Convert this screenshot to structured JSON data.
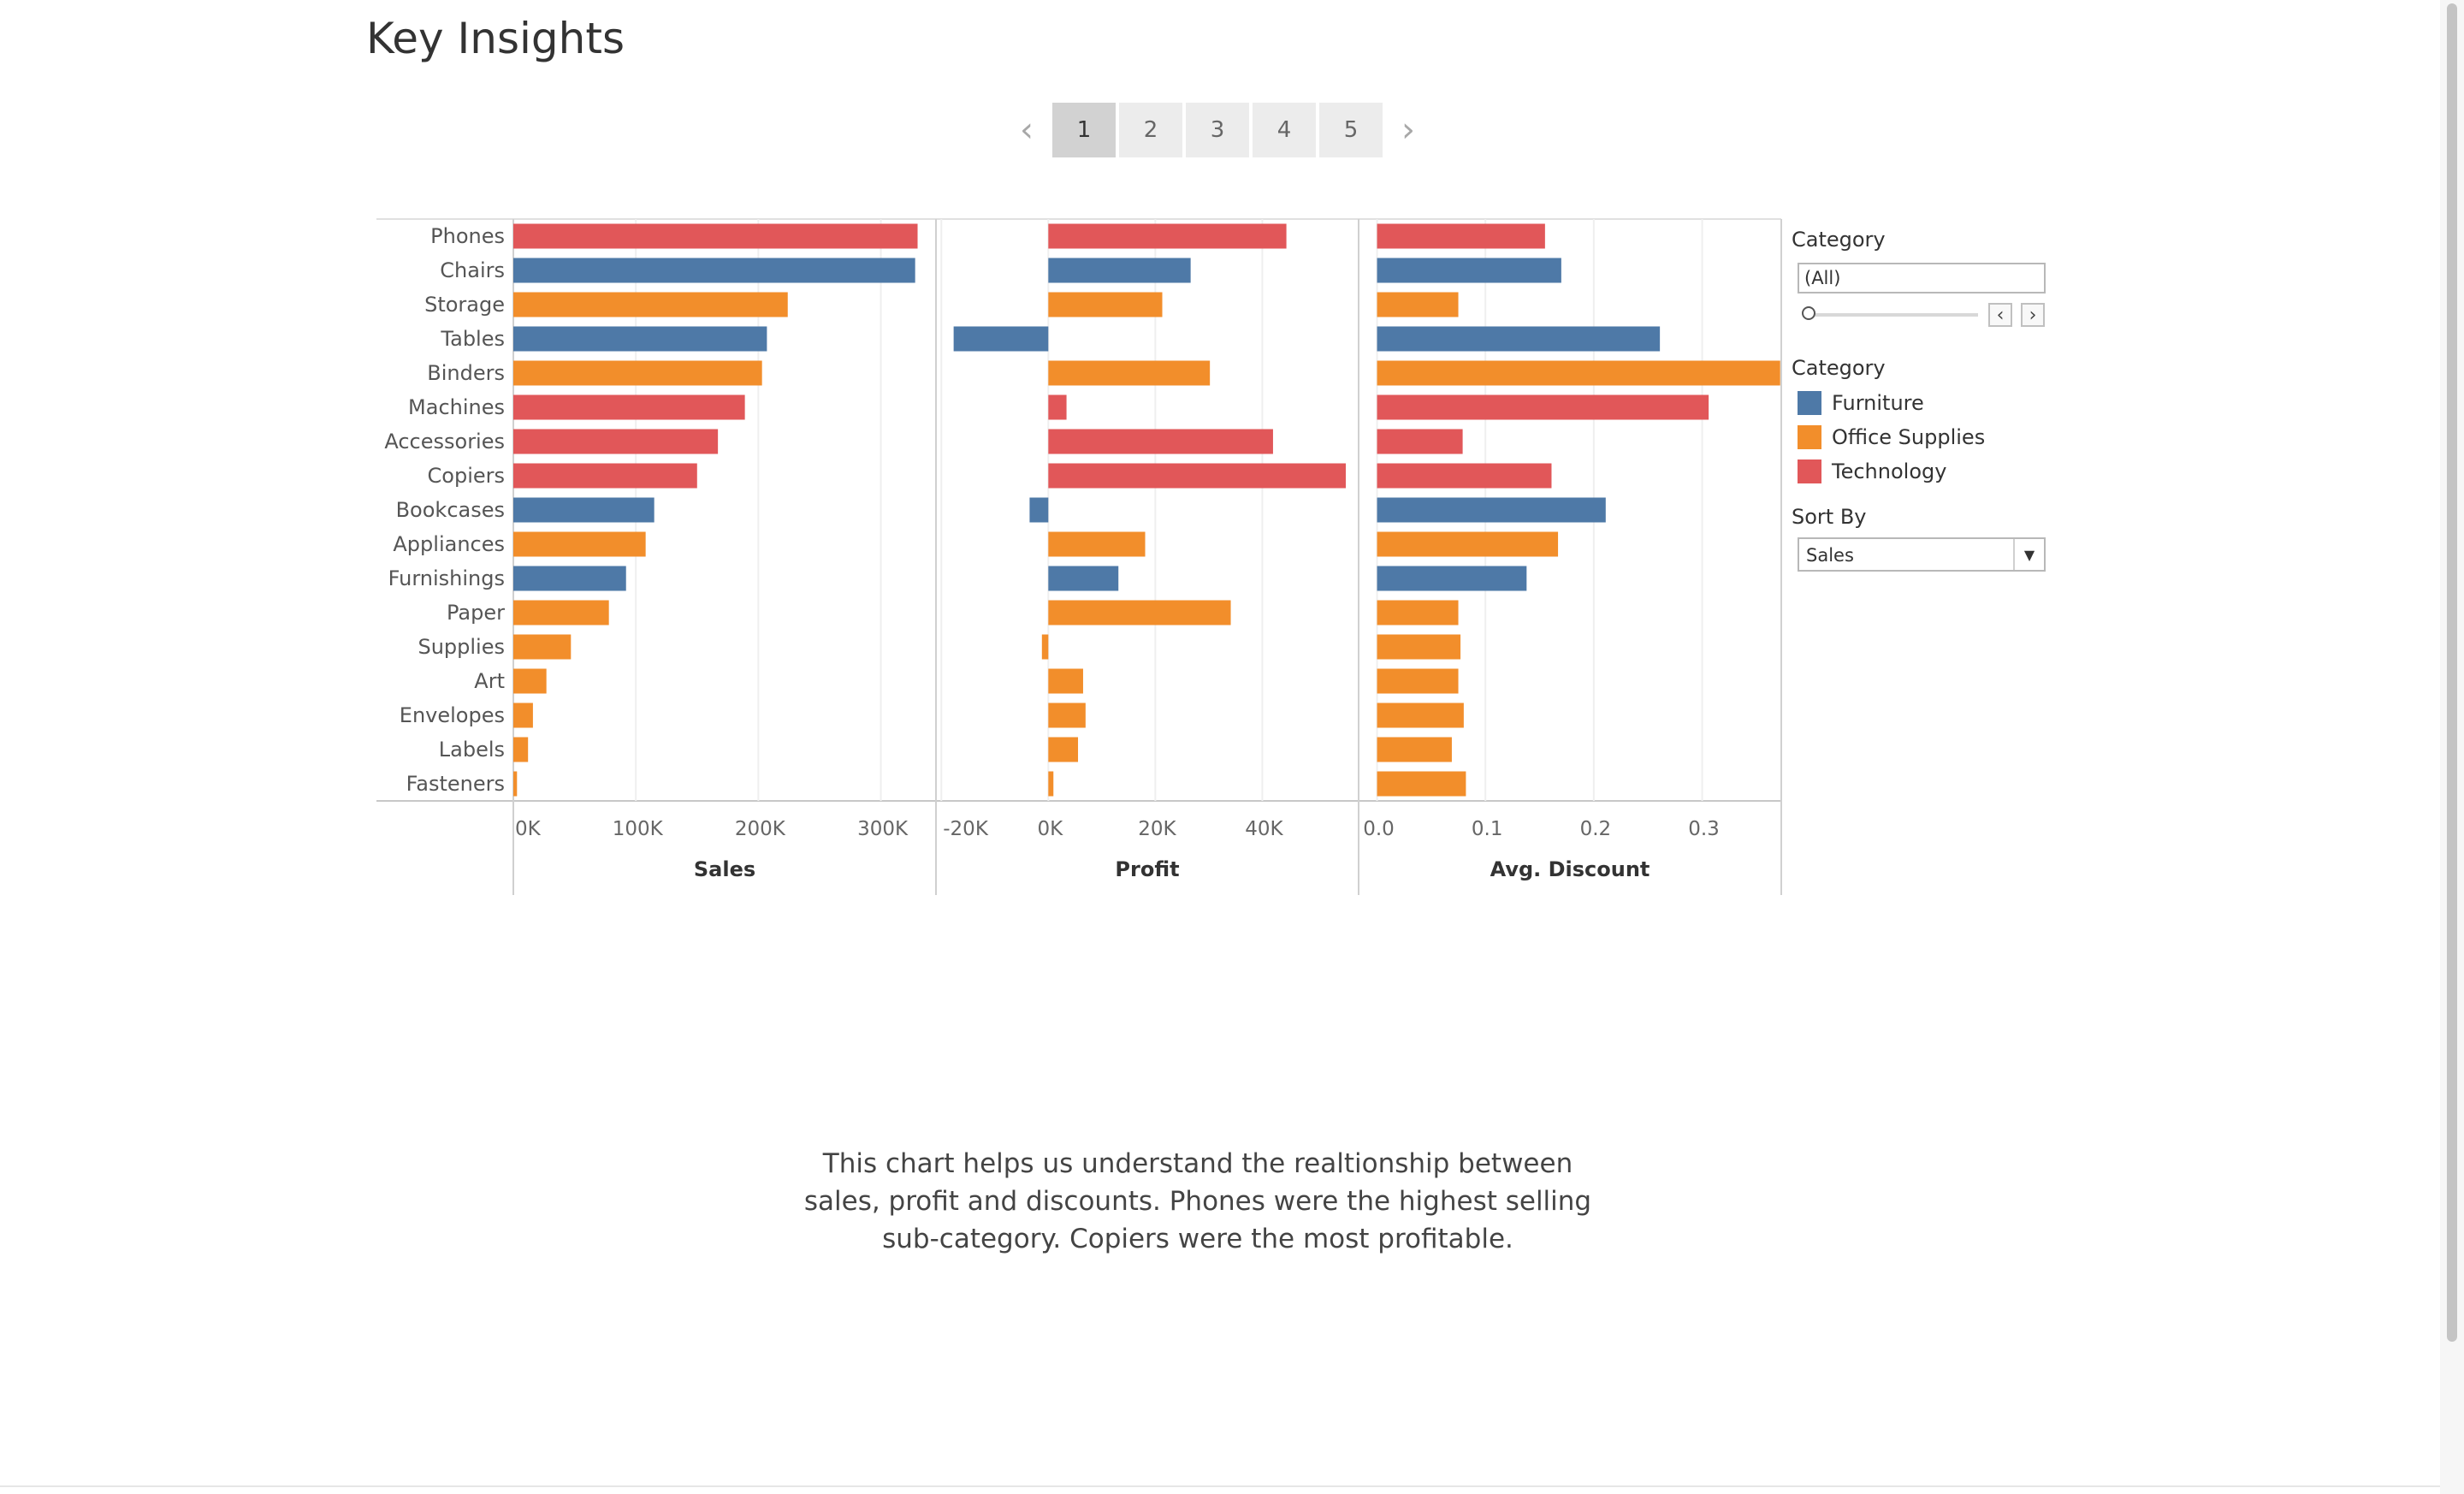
{
  "page": {
    "title": "Key Insights"
  },
  "pager": {
    "prev_glyph": "‹",
    "next_glyph": "›",
    "pages": [
      "1",
      "2",
      "3",
      "4",
      "5"
    ],
    "active_page": "1"
  },
  "filter": {
    "title": "Category",
    "value": "(All)",
    "prev_glyph": "‹",
    "next_glyph": "›"
  },
  "legend": {
    "title": "Category",
    "items": [
      {
        "label": "Furniture",
        "color": "#4e79a7"
      },
      {
        "label": "Office Supplies",
        "color": "#f28e2b"
      },
      {
        "label": "Technology",
        "color": "#e15759"
      }
    ]
  },
  "sort": {
    "title": "Sort By",
    "value": "Sales",
    "caret": "▼"
  },
  "caption": {
    "lines": [
      "This chart helps us understand the realtionship between",
      "sales, profit and discounts. Phones were the highest selling",
      "sub-category. Copiers were the most profitable."
    ]
  },
  "chart_data": {
    "type": "bar",
    "orientation": "horizontal",
    "grid": true,
    "categories": [
      "Phones",
      "Chairs",
      "Storage",
      "Tables",
      "Binders",
      "Machines",
      "Accessories",
      "Copiers",
      "Bookcases",
      "Appliances",
      "Furnishings",
      "Paper",
      "Supplies",
      "Art",
      "Envelopes",
      "Labels",
      "Fasteners"
    ],
    "category_group": [
      "Technology",
      "Furniture",
      "Office Supplies",
      "Furniture",
      "Office Supplies",
      "Technology",
      "Technology",
      "Technology",
      "Furniture",
      "Office Supplies",
      "Furniture",
      "Office Supplies",
      "Office Supplies",
      "Office Supplies",
      "Office Supplies",
      "Office Supplies",
      "Office Supplies"
    ],
    "group_colors": {
      "Furniture": "#4e79a7",
      "Office Supplies": "#f28e2b",
      "Technology": "#e15759"
    },
    "panels": [
      {
        "xlabel": "Sales",
        "xlim": [
          0,
          345000
        ],
        "ticks": [
          0,
          100000,
          200000,
          300000
        ],
        "tick_labels": [
          "0K",
          "100K",
          "200K",
          "300K"
        ],
        "values": [
          330000,
          328000,
          224000,
          207000,
          203000,
          189000,
          167000,
          150000,
          115000,
          108000,
          92000,
          78000,
          47000,
          27000,
          16000,
          12000,
          3000
        ]
      },
      {
        "xlabel": "Profit",
        "xlim": [
          -21000,
          58000
        ],
        "ticks": [
          -20000,
          0,
          20000,
          40000
        ],
        "tick_labels": [
          "-20K",
          "0K",
          "20K",
          "40K"
        ],
        "values": [
          44500,
          26600,
          21300,
          -17700,
          30200,
          3400,
          42000,
          55600,
          -3500,
          18100,
          13100,
          34100,
          -1200,
          6500,
          6960,
          5550,
          950
        ]
      },
      {
        "xlabel": "Avg. Discount",
        "xlim": [
          -0.017,
          0.373
        ],
        "ticks": [
          0,
          0.1,
          0.2,
          0.3
        ],
        "tick_labels": [
          "0.0",
          "0.1",
          "0.2",
          "0.3"
        ],
        "values": [
          0.155,
          0.17,
          0.075,
          0.261,
          0.372,
          0.306,
          0.079,
          0.161,
          0.211,
          0.167,
          0.138,
          0.075,
          0.077,
          0.075,
          0.08,
          0.069,
          0.082
        ]
      }
    ]
  }
}
